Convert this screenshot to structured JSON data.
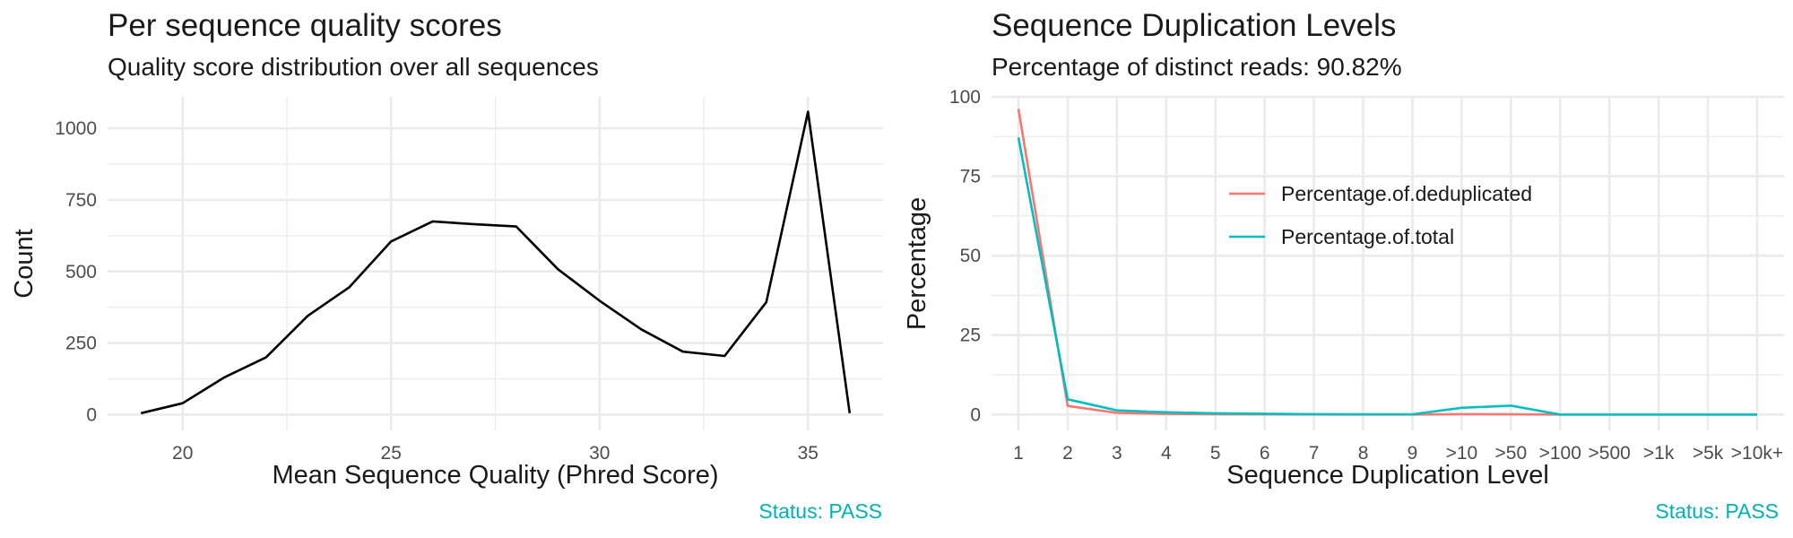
{
  "charts": {
    "left": {
      "title": "Per sequence quality scores",
      "subtitle": "Quality score distribution over all sequences",
      "status": "Status: PASS"
    },
    "right": {
      "title": "Sequence Duplication Levels",
      "subtitle": "Percentage of distinct reads: 90.82%",
      "status": "Status: PASS"
    }
  },
  "colors": {
    "status": "#00B2B2",
    "line_black": "#000000",
    "deduplicated": "#F8766D",
    "total": "#00BFC4",
    "grid": "#EBEBEB"
  },
  "chart_data": [
    {
      "type": "line",
      "title": "Per sequence quality scores",
      "subtitle": "Quality score distribution over all sequences",
      "xlabel": "Mean Sequence Quality (Phred Score)",
      "ylabel": "Count",
      "xlim": [
        18.2,
        36.8
      ],
      "ylim": [
        -55,
        1110
      ],
      "x_ticks": [
        20,
        25,
        30,
        35
      ],
      "y_ticks": [
        0,
        250,
        500,
        750,
        1000
      ],
      "grid": true,
      "series": [
        {
          "x": [
            19,
            20,
            21,
            22,
            23,
            24,
            25,
            26,
            27,
            28,
            29,
            30,
            31,
            32,
            33,
            34,
            35,
            36
          ],
          "values": [
            5,
            40,
            130,
            200,
            345,
            445,
            605,
            675,
            665,
            657,
            508,
            398,
            298,
            220,
            205,
            393,
            1058,
            5
          ]
        }
      ]
    },
    {
      "type": "line",
      "title": "Sequence Duplication Levels",
      "subtitle": "Percentage of distinct reads: 90.82%",
      "xlabel": "Sequence Duplication Level",
      "ylabel": "Percentage",
      "categories": [
        "1",
        "2",
        "3",
        "4",
        "5",
        "6",
        "7",
        "8",
        "9",
        ">10",
        ">50",
        ">100",
        ">500",
        ">1k",
        ">5k",
        ">10k+"
      ],
      "ylim": [
        -5,
        100
      ],
      "y_ticks": [
        0,
        25,
        50,
        75,
        100
      ],
      "grid": true,
      "legend_position": "inside-top-center",
      "series": [
        {
          "name": "Percentage.of.deduplicated",
          "values": [
            96.2,
            2.7,
            0.5,
            0.2,
            0.1,
            0.05,
            0.02,
            0.01,
            0.01,
            0.1,
            0.05,
            0.0,
            0.0,
            0.0,
            0.0,
            0.0
          ]
        },
        {
          "name": "Percentage.of.total",
          "values": [
            87.2,
            4.8,
            1.3,
            0.7,
            0.4,
            0.25,
            0.12,
            0.07,
            0.07,
            2.1,
            2.8,
            0.0,
            0.0,
            0.0,
            0.0,
            0.0
          ]
        }
      ]
    }
  ]
}
